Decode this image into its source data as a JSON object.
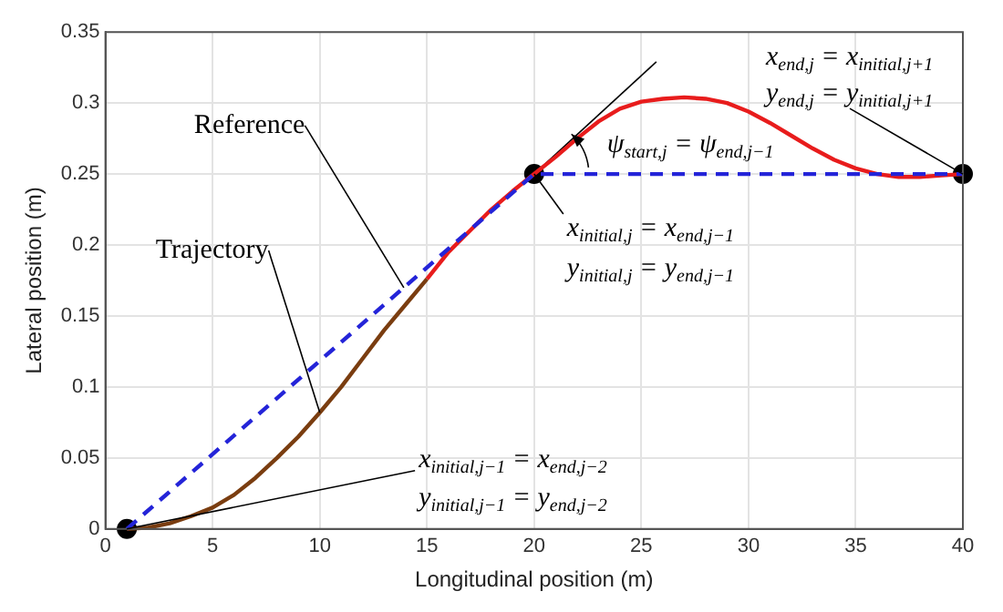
{
  "chart_data": {
    "type": "line",
    "xlabel": "Longitudinal position (m)",
    "ylabel": "Lateral position (m)",
    "xlim": [
      0,
      40
    ],
    "xticks": [
      0,
      5,
      10,
      15,
      20,
      25,
      30,
      35,
      40
    ],
    "ylim": [
      0,
      0.35
    ],
    "yticks": [
      0,
      0.05,
      0.1,
      0.15,
      0.2,
      0.25,
      0.3,
      0.35
    ],
    "grid": true,
    "legend": false,
    "marker": "none",
    "series": [
      {
        "name": "Reference",
        "color": "#2424d8",
        "line_style": "dashed",
        "x": [
          1,
          20,
          40
        ],
        "values": [
          0,
          0.25,
          0.25
        ]
      },
      {
        "name": "Trajectory",
        "color": "#7a3d10",
        "x": [
          1,
          2,
          3,
          4,
          5,
          6,
          7,
          8,
          9,
          10,
          11,
          12,
          13,
          14,
          15
        ],
        "values": [
          0,
          0.001,
          0.004,
          0.009,
          0.015,
          0.024,
          0.036,
          0.05,
          0.065,
          0.082,
          0.1,
          0.12,
          0.14,
          0.158,
          0.176
        ]
      },
      {
        "color": "#e81c1c",
        "x": [
          15,
          16,
          17,
          18,
          19,
          20,
          21,
          22,
          23,
          24,
          25,
          26,
          27,
          28,
          29,
          30,
          31,
          32,
          33,
          34,
          35,
          36,
          37,
          38,
          39,
          40
        ],
        "values": [
          0.176,
          0.195,
          0.21,
          0.225,
          0.238,
          0.25,
          0.262,
          0.275,
          0.287,
          0.296,
          0.301,
          0.303,
          0.304,
          0.303,
          0.3,
          0.294,
          0.286,
          0.277,
          0.268,
          0.26,
          0.254,
          0.25,
          0.248,
          0.248,
          0.249,
          0.25
        ]
      },
      {
        "type": "line",
        "color": "#000000",
        "x": [
          20,
          25.7
        ],
        "values": [
          0.25,
          0.329
        ]
      },
      {
        "type": "scatter",
        "color": "#000000",
        "marker": "circle",
        "x": [
          1,
          20,
          40
        ],
        "values": [
          0,
          0.25,
          0.25
        ]
      }
    ],
    "annotations": [
      {
        "text": "x$_{initial,j−1}$ = x$_{end,j−2}$",
        "x": 1,
        "y": 0
      },
      "y$_{initial,j−1}$ = y$_{end,j−2}$",
      {
        "text": "ψ$_{start,j}$ = ψ$_{end,j−1}$",
        "x": 20,
        "y": 0.25
      },
      {
        "text": "x$_{initial,j}$ = x$_{end,j−1}$",
        "x": 20,
        "y": 0.25
      },
      "y$_{initial,j}$ = y$_{end,j−1}$",
      {
        "text": "x$_{end,j}$ = x$_{initial,j+1}$",
        "x": 40,
        "y": 0.25
      },
      "y$_{end,j}$ = y$_{initial,j+1}$"
    ]
  }
}
